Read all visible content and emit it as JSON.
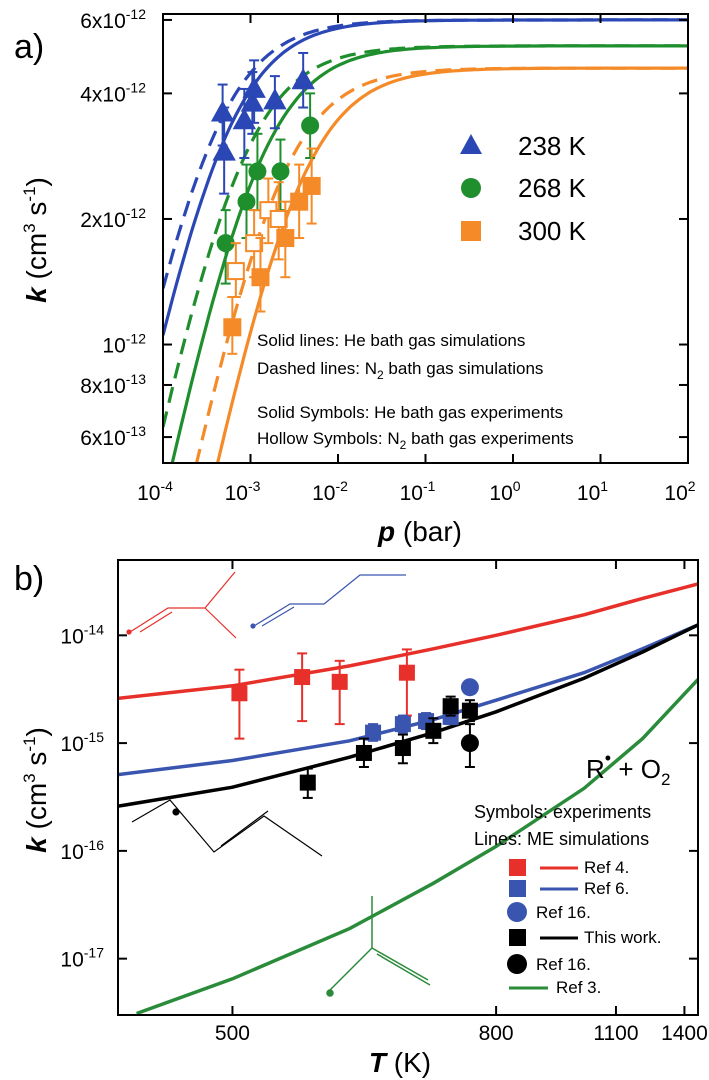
{
  "chart_data": [
    {
      "panel": "a)",
      "type": "scatter",
      "xlabel_italic": "p",
      "xlabel_rest": "(bar)",
      "ylabel": "k (cm3 s-1)",
      "x_scale": "log",
      "y_scale": "log",
      "xlim": [
        0.0001,
        100
      ],
      "ylim": [
        5.2e-13,
        6.2e-12
      ],
      "x_ticks": [
        {
          "v": 0.0001,
          "mant": "10",
          "exp": "-4"
        },
        {
          "v": 0.001,
          "mant": "10",
          "exp": "-3"
        },
        {
          "v": 0.01,
          "mant": "10",
          "exp": "-2"
        },
        {
          "v": 0.1,
          "mant": "10",
          "exp": "-1"
        },
        {
          "v": 1,
          "mant": "10",
          "exp": "0"
        },
        {
          "v": 10,
          "mant": "10",
          "exp": "1"
        },
        {
          "v": 100,
          "mant": "10",
          "exp": "2"
        }
      ],
      "y_ticks": [
        {
          "v": 6e-12,
          "mant": "6x10",
          "exp": "-12"
        },
        {
          "v": 4e-12,
          "mant": "4x10",
          "exp": "-12"
        },
        {
          "v": 2e-12,
          "mant": "2x10",
          "exp": "-12"
        },
        {
          "v": 1e-12,
          "mant": "10",
          "exp": "-12"
        },
        {
          "v": 8e-13,
          "mant": "8x10",
          "exp": "-13"
        },
        {
          "v": 6e-13,
          "mant": "6x10",
          "exp": "-13"
        }
      ],
      "legend": [
        {
          "label": "238 K",
          "marker": "triangle",
          "color": "#2a47b5"
        },
        {
          "label": "268 K",
          "marker": "circle",
          "color": "#1f8f2e"
        },
        {
          "label": "300 K",
          "marker": "square",
          "color": "#f58a28"
        }
      ],
      "notes": [
        {
          "text": "Solid lines: He bath gas simulations"
        },
        {
          "pre": "Dashed lines: N",
          "sub": "2",
          "post": " bath gas simulations"
        },
        {
          "text": "Solid Symbols: He bath gas experiments"
        },
        {
          "pre": "Hollow Symbols: N",
          "sub": "2",
          "post": " bath gas experiments"
        }
      ],
      "series": [
        {
          "temperature": "238 K",
          "color": "#2a47b5",
          "marker": "triangle",
          "curves": [
            {
              "style": "solid",
              "kinf": 6e-12,
              "p0": 0.00047
            },
            {
              "style": "dashed",
              "kinf": 6e-12,
              "p0": 0.00034
            }
          ],
          "points": [
            {
              "x": 0.00048,
              "y": 3.6e-12,
              "err": [
                3e-12,
                4.2e-12
              ],
              "hollow": false
            },
            {
              "x": 0.0005,
              "y": 2.9e-12,
              "err": [
                2.3e-12,
                3.7e-12
              ],
              "hollow": false
            },
            {
              "x": 0.00085,
              "y": 3.45e-12,
              "err": [
                2.8e-12,
                4.1e-12
              ],
              "hollow": false
            },
            {
              "x": 0.00105,
              "y": 3.8e-12,
              "err": [
                3.2e-12,
                4.5e-12
              ],
              "hollow": false
            },
            {
              "x": 0.0011,
              "y": 4.1e-12,
              "err": [
                3.4e-12,
                4.8e-12
              ],
              "hollow": false
            },
            {
              "x": 0.0019,
              "y": 3.85e-12,
              "err": [
                3.3e-12,
                4.4e-12
              ],
              "hollow": false
            },
            {
              "x": 0.004,
              "y": 4.3e-12,
              "err": [
                3.7e-12,
                5e-12
              ],
              "hollow": false
            }
          ]
        },
        {
          "temperature": "268 K",
          "color": "#1f8f2e",
          "marker": "circle",
          "curves": [
            {
              "style": "solid",
              "kinf": 5.2e-12,
              "p0": 0.00115
            },
            {
              "style": "dashed",
              "kinf": 5.2e-12,
              "p0": 0.00072
            }
          ],
          "points": [
            {
              "x": 0.00052,
              "y": 1.75e-12,
              "err": [
                1.4e-12,
                2.1e-12
              ],
              "hollow": false
            },
            {
              "x": 0.0009,
              "y": 2.2e-12,
              "err": [
                1.8e-12,
                2.7e-12
              ],
              "hollow": false
            },
            {
              "x": 0.0012,
              "y": 2.6e-12,
              "err": [
                2.1e-12,
                3.2e-12
              ],
              "hollow": false
            },
            {
              "x": 0.0022,
              "y": 2.6e-12,
              "err": [
                2.1e-12,
                3.1e-12
              ],
              "hollow": false
            },
            {
              "x": 0.0048,
              "y": 3.35e-12,
              "err": [
                2.8e-12,
                4e-12
              ],
              "hollow": false
            }
          ]
        },
        {
          "temperature": "300 K",
          "color": "#f58a28",
          "marker": "square",
          "curves": [
            {
              "style": "solid",
              "kinf": 4.6e-12,
              "p0": 0.0033
            },
            {
              "style": "dashed",
              "kinf": 4.6e-12,
              "p0": 0.0019
            }
          ],
          "points": [
            {
              "x": 0.00062,
              "y": 1.1e-12,
              "err": [
                9.5e-13,
                1.3e-12
              ],
              "hollow": false
            },
            {
              "x": 0.00068,
              "y": 1.5e-12,
              "err": [
                1.3e-12,
                1.75e-12
              ],
              "hollow": true
            },
            {
              "x": 0.0011,
              "y": 1.75e-12,
              "err": [
                1.45e-12,
                2.1e-12
              ],
              "hollow": true
            },
            {
              "x": 0.0013,
              "y": 1.45e-12,
              "err": [
                1.2e-12,
                1.8e-12
              ],
              "hollow": false
            },
            {
              "x": 0.0016,
              "y": 2.1e-12,
              "err": [
                1.75e-12,
                2.5e-12
              ],
              "hollow": true
            },
            {
              "x": 0.0021,
              "y": 2e-12,
              "err": [
                1.6e-12,
                2.45e-12
              ],
              "hollow": true
            },
            {
              "x": 0.0025,
              "y": 1.8e-12,
              "err": [
                1.45e-12,
                2.2e-12
              ],
              "hollow": false
            },
            {
              "x": 0.0036,
              "y": 2.2e-12,
              "err": [
                1.8e-12,
                2.7e-12
              ],
              "hollow": false
            },
            {
              "x": 0.005,
              "y": 2.4e-12,
              "err": [
                1.95e-12,
                2.95e-12
              ],
              "hollow": false
            }
          ]
        }
      ]
    },
    {
      "panel": "b)",
      "type": "scatter",
      "xlabel_italic": "T",
      "xlabel_rest": "(K)",
      "ylabel": "k (cm3 s-1)",
      "x_scale": "reciprocal",
      "y_scale": "log",
      "xlim": [
        430,
        1480
      ],
      "ylim": [
        3e-18,
        5e-14
      ],
      "x_ticks": [
        500,
        800,
        1100,
        1400
      ],
      "y_ticks": [
        {
          "v": 1e-14,
          "mant": "10",
          "exp": "-14"
        },
        {
          "v": 1e-15,
          "mant": "10",
          "exp": "-15"
        },
        {
          "v": 1e-16,
          "mant": "10",
          "exp": "-16"
        },
        {
          "v": 1e-17,
          "mant": "10",
          "exp": "-17"
        }
      ],
      "annotation": "R + O2",
      "legend_titles": [
        "Symbols: experiments",
        "Lines: ME simulations"
      ],
      "legend": [
        {
          "label": "Ref 4.",
          "marker": "square",
          "line": true,
          "color": "#e8302a"
        },
        {
          "label": "Ref 6.",
          "marker": "square",
          "line": true,
          "color": "#3a55b0"
        },
        {
          "label": "Ref 16.",
          "marker": "circle",
          "line": false,
          "color": "#3a55b0"
        },
        {
          "label": "This work.",
          "marker": "square",
          "line": true,
          "color": "#000000"
        },
        {
          "label": "Ref 16.",
          "marker": "circle",
          "line": false,
          "color": "#000000"
        },
        {
          "label": "Ref 3.",
          "marker": "none",
          "line": true,
          "color": "#2a8c3a"
        }
      ],
      "series": [
        {
          "name": "Ref 4.",
          "color": "#e8302a",
          "line": [
            [
              430,
              2.6e-15
            ],
            [
              500,
              3.4e-15
            ],
            [
              600,
              5.2e-15
            ],
            [
              700,
              7.5e-15
            ],
            [
              800,
              1e-14
            ],
            [
              1000,
              1.55e-14
            ],
            [
              1200,
              2.2e-14
            ],
            [
              1480,
              3e-14
            ]
          ],
          "points": [
            {
              "x": 505,
              "y": 2.9e-15,
              "err": [
                1.1e-15,
                4.8e-15
              ]
            },
            {
              "x": 555,
              "y": 4.1e-15,
              "err": [
                1.6e-15,
                6.8e-15
              ]
            },
            {
              "x": 590,
              "y": 3.7e-15,
              "err": [
                1.5e-15,
                5.8e-15
              ]
            },
            {
              "x": 665,
              "y": 4.5e-15,
              "err": [
                1.8e-15,
                7.4e-15
              ]
            }
          ]
        },
        {
          "name": "Ref 6.",
          "color": "#3a55b0",
          "line": [
            [
              430,
              5.1e-16
            ],
            [
              500,
              6.9e-16
            ],
            [
              600,
              1.05e-15
            ],
            [
              700,
              1.65e-15
            ],
            [
              800,
              2.5e-15
            ],
            [
              1000,
              4.5e-15
            ],
            [
              1200,
              7.5e-15
            ],
            [
              1480,
              1.25e-14
            ]
          ],
          "points": [
            {
              "x": 625,
              "y": 1.25e-15,
              "err": [
                1.05e-15,
                1.5e-15
              ]
            },
            {
              "x": 660,
              "y": 1.5e-15,
              "err": [
                1.25e-15,
                1.8e-15
              ]
            },
            {
              "x": 690,
              "y": 1.6e-15,
              "err": [
                1.35e-15,
                1.9e-15
              ]
            },
            {
              "x": 725,
              "y": 1.75e-15,
              "err": [
                1.5e-15,
                2.05e-15
              ]
            }
          ]
        },
        {
          "name": "Ref 16.",
          "color": "#3a55b0",
          "marker": "circle",
          "points": [
            {
              "x": 755,
              "y": 3.3e-15
            }
          ]
        },
        {
          "name": "This work.",
          "color": "#000000",
          "line": [
            [
              430,
              2.6e-16
            ],
            [
              500,
              3.9e-16
            ],
            [
              600,
              7.4e-16
            ],
            [
              700,
              1.25e-15
            ],
            [
              800,
              1.95e-15
            ],
            [
              1000,
              4e-15
            ],
            [
              1200,
              7e-15
            ],
            [
              1480,
              1.25e-14
            ]
          ],
          "points": [
            {
              "x": 560,
              "y": 4.3e-16,
              "err": [
                3.1e-16,
                5.8e-16
              ]
            },
            {
              "x": 615,
              "y": 8.1e-16,
              "err": [
                6e-16,
                1.1e-15
              ]
            },
            {
              "x": 660,
              "y": 9e-16,
              "err": [
                6.5e-16,
                1.2e-15
              ]
            },
            {
              "x": 700,
              "y": 1.3e-15,
              "err": [
                1e-15,
                1.7e-15
              ]
            },
            {
              "x": 725,
              "y": 2.2e-15,
              "err": [
                1.8e-15,
                2.7e-15
              ]
            },
            {
              "x": 755,
              "y": 2e-15,
              "err": [
                1.6e-15,
                2.5e-15
              ]
            }
          ]
        },
        {
          "name": "Ref 16.",
          "color": "#000000",
          "marker": "circle",
          "points": [
            {
              "x": 755,
              "y": 1e-15,
              "err": [
                6e-16,
                1.5e-15
              ]
            }
          ]
        },
        {
          "name": "Ref 3.",
          "color": "#2a8c3a",
          "line": [
            [
              440,
              3.1e-18
            ],
            [
              500,
              6.5e-18
            ],
            [
              600,
              1.9e-17
            ],
            [
              700,
              5e-17
            ],
            [
              800,
              1.1e-16
            ],
            [
              1000,
              3.8e-16
            ],
            [
              1200,
              1.1e-15
            ],
            [
              1480,
              3.9e-15
            ]
          ]
        }
      ]
    }
  ]
}
